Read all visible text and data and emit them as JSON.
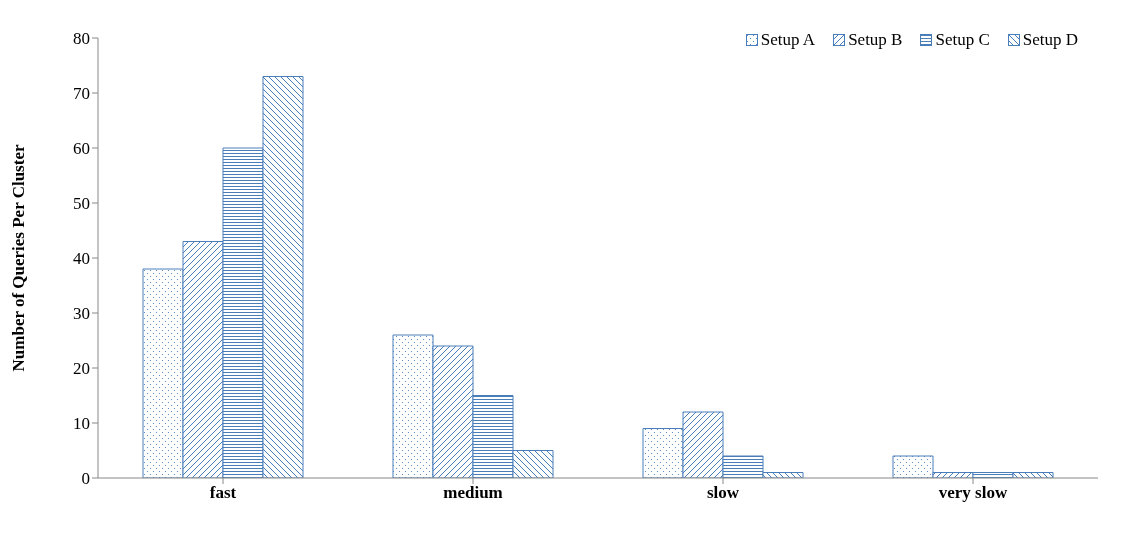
{
  "chart_data": {
    "type": "bar",
    "ylabel": "Number of Queries Per Cluster",
    "categories": [
      "fast",
      "medium",
      "slow",
      "very slow"
    ],
    "series": [
      {
        "name": "Setup A",
        "color": "#4a7ebb",
        "values": [
          38,
          26,
          9,
          4
        ]
      },
      {
        "name": "Setup B",
        "color": "#4a7ebb",
        "values": [
          43,
          24,
          12,
          1
        ]
      },
      {
        "name": "Setup C",
        "color": "#4a7ebb",
        "values": [
          60,
          15,
          4,
          1
        ]
      },
      {
        "name": "Setup D",
        "color": "#4a7ebb",
        "values": [
          73,
          5,
          1,
          1
        ]
      }
    ],
    "ylim": [
      0,
      80
    ],
    "yticks": [
      0,
      10,
      20,
      30,
      40,
      50,
      60,
      70,
      80
    ],
    "grid": false,
    "legend": "top right"
  }
}
